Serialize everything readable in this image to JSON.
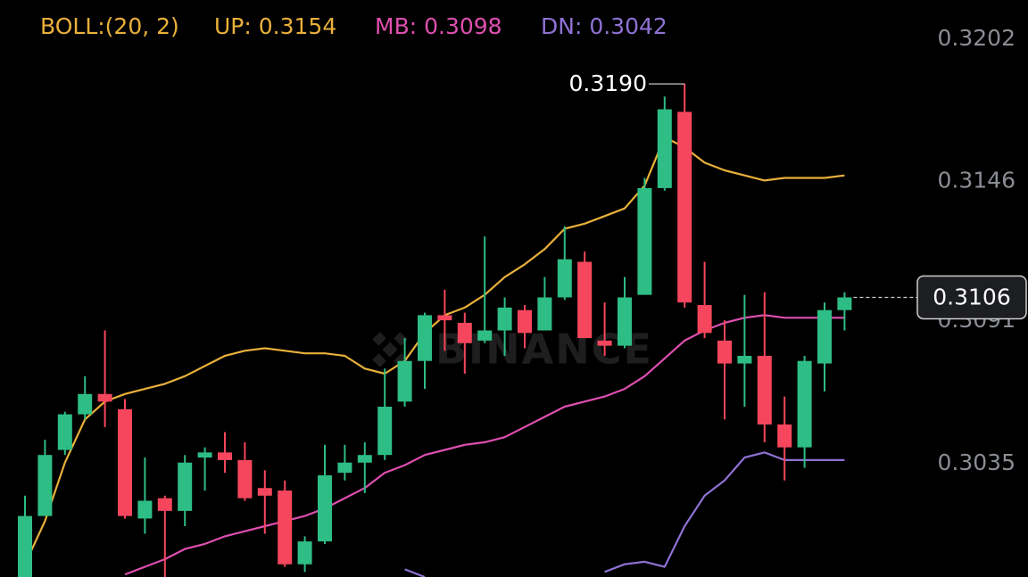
{
  "chart_data": {
    "type": "candlestick",
    "indicator": "BOLL:(20, 2)",
    "up_color": "#2ebd85",
    "down_color": "#f6465d",
    "open": [
      0.2996,
      0.302,
      0.3046,
      0.306,
      0.3068,
      0.3062,
      0.3019,
      0.3027,
      0.3022,
      0.3043,
      0.3045,
      0.3042,
      0.3031,
      0.303,
      0.3001,
      0.301,
      0.3037,
      0.3041,
      0.3044,
      0.3065,
      0.3081,
      0.3099,
      0.3096,
      0.3089,
      0.3093,
      0.3101,
      0.3093,
      0.3106,
      0.312,
      0.3089,
      0.3087,
      0.3107,
      0.3149,
      0.3179,
      0.3103,
      0.3089,
      0.308,
      0.3083,
      0.3056,
      0.3047,
      0.308,
      0.3101
    ],
    "high": [
      0.3028,
      0.305,
      0.3061,
      0.3075,
      0.3093,
      0.3066,
      0.3043,
      0.3028,
      0.3044,
      0.3047,
      0.3053,
      0.3049,
      0.3038,
      0.3034,
      0.3012,
      0.3048,
      0.3048,
      0.3049,
      0.3078,
      0.309,
      0.31,
      0.3109,
      0.31,
      0.313,
      0.3106,
      0.3103,
      0.3114,
      0.3134,
      0.3124,
      0.3104,
      0.3114,
      0.3153,
      0.3185,
      0.319,
      0.312,
      0.3097,
      0.3107,
      0.3108,
      0.3067,
      0.3083,
      0.3104,
      0.3108
    ],
    "low": [
      0.2996,
      0.302,
      0.3044,
      0.3058,
      0.3055,
      0.3019,
      0.3013,
      0.2996,
      0.3016,
      0.303,
      0.3037,
      0.3026,
      0.3013,
      0.3,
      0.2998,
      0.3009,
      0.3034,
      0.3029,
      0.3042,
      0.3063,
      0.307,
      0.3085,
      0.3076,
      0.3088,
      0.3083,
      0.3086,
      0.3093,
      0.3105,
      0.309,
      0.3083,
      0.3086,
      0.3107,
      0.3148,
      0.3102,
      0.309,
      0.3058,
      0.3063,
      0.3049,
      0.3034,
      0.3039,
      0.3069,
      0.3093
    ],
    "close": [
      0.302,
      0.3044,
      0.306,
      0.3068,
      0.3065,
      0.302,
      0.3026,
      0.3022,
      0.3041,
      0.3045,
      0.3042,
      0.3027,
      0.3028,
      0.3001,
      0.301,
      0.3036,
      0.3041,
      0.3044,
      0.3063,
      0.3081,
      0.3099,
      0.3097,
      0.3088,
      0.3093,
      0.3102,
      0.3092,
      0.3106,
      0.3121,
      0.309,
      0.3087,
      0.3106,
      0.3149,
      0.318,
      0.3104,
      0.3092,
      0.308,
      0.3083,
      0.3056,
      0.3047,
      0.3081,
      0.3101,
      0.3106
    ],
    "series": [
      {
        "name": "UP: 0.3154",
        "color": "#e9b03a",
        "values": [
          0.3001,
          0.3018,
          0.3041,
          0.3058,
          0.3065,
          0.3068,
          0.307,
          0.3072,
          0.3075,
          0.3079,
          0.3083,
          0.3085,
          0.3086,
          0.3085,
          0.3084,
          0.3084,
          0.3083,
          0.3078,
          0.3076,
          0.3081,
          0.3092,
          0.3099,
          0.3102,
          0.3107,
          0.3114,
          0.3119,
          0.3125,
          0.3133,
          0.3135,
          0.3138,
          0.3141,
          0.315,
          0.3169,
          0.3165,
          0.3159,
          0.3156,
          0.3154,
          0.3152,
          0.3153,
          0.3153,
          0.3153,
          0.3154
        ]
      },
      {
        "name": "MB: 0.3098",
        "color": "#de4fb0",
        "values": [
          null,
          null,
          null,
          null,
          null,
          0.2997,
          0.3,
          0.3003,
          0.3007,
          0.3009,
          0.3012,
          0.3014,
          0.3016,
          0.3018,
          0.302,
          0.3023,
          0.3027,
          0.3031,
          0.3037,
          0.304,
          0.3044,
          0.3046,
          0.3048,
          0.3049,
          0.3051,
          0.3055,
          0.3059,
          0.3063,
          0.3065,
          0.3067,
          0.307,
          0.3075,
          0.3082,
          0.3089,
          0.3093,
          0.3096,
          0.3098,
          0.3099,
          0.3098,
          0.3098,
          0.3098,
          0.3098
        ]
      },
      {
        "name": "DN: 0.3042",
        "color": "#8f72d4",
        "values": [
          null,
          null,
          null,
          null,
          null,
          null,
          null,
          null,
          null,
          null,
          null,
          null,
          null,
          null,
          null,
          null,
          null,
          null,
          null,
          0.2999,
          0.2996,
          null,
          null,
          null,
          null,
          null,
          null,
          null,
          null,
          0.2998,
          0.3001,
          0.3002,
          0.3,
          0.3016,
          0.3028,
          0.3034,
          0.3043,
          0.3045,
          0.3042,
          0.3042,
          0.3042,
          0.3042
        ]
      }
    ],
    "ylim": [
      0.2996,
      0.3223
    ],
    "yticks": [
      0.3202,
      0.3146,
      0.3091,
      0.3035
    ],
    "high_label": {
      "value": 0.319,
      "label": "0.3190"
    },
    "last_price": 0.3106,
    "watermark": "BINANCE"
  }
}
